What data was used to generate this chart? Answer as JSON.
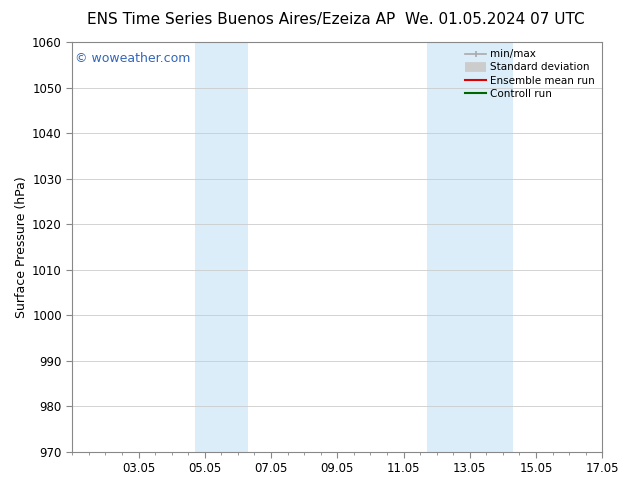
{
  "title_left": "ENS Time Series Buenos Aires/Ezeiza AP",
  "title_right": "We. 01.05.2024 07 UTC",
  "ylabel": "Surface Pressure (hPa)",
  "ylim": [
    970,
    1060
  ],
  "yticks": [
    970,
    980,
    990,
    1000,
    1010,
    1020,
    1030,
    1040,
    1050,
    1060
  ],
  "xlim": [
    0,
    16
  ],
  "xtick_labels": [
    "03.05",
    "05.05",
    "07.05",
    "09.05",
    "11.05",
    "13.05",
    "15.05",
    "17.05"
  ],
  "xtick_positions": [
    2,
    4,
    6,
    8,
    10,
    12,
    14,
    16
  ],
  "shaded_regions": [
    {
      "x_start": 3.7,
      "x_end": 5.3,
      "color": "#daedf8"
    },
    {
      "x_start": 10.7,
      "x_end": 12.0,
      "color": "#daedf8"
    },
    {
      "x_start": 12.0,
      "x_end": 13.3,
      "color": "#daedf8"
    }
  ],
  "watermark_text": "© woweather.com",
  "watermark_color": "#3366bb",
  "legend_items": [
    {
      "label": "min/max",
      "color": "#aaaaaa",
      "linewidth": 1.2
    },
    {
      "label": "Standard deviation",
      "color": "#cccccc",
      "linewidth": 7
    },
    {
      "label": "Ensemble mean run",
      "color": "#dd0000",
      "linewidth": 1.5
    },
    {
      "label": "Controll run",
      "color": "#006600",
      "linewidth": 1.5
    }
  ],
  "bg_color": "#ffffff",
  "spine_color": "#888888",
  "title_fontsize": 11,
  "watermark_fontsize": 9,
  "ylabel_fontsize": 9,
  "tick_fontsize": 8.5,
  "legend_fontsize": 7.5
}
